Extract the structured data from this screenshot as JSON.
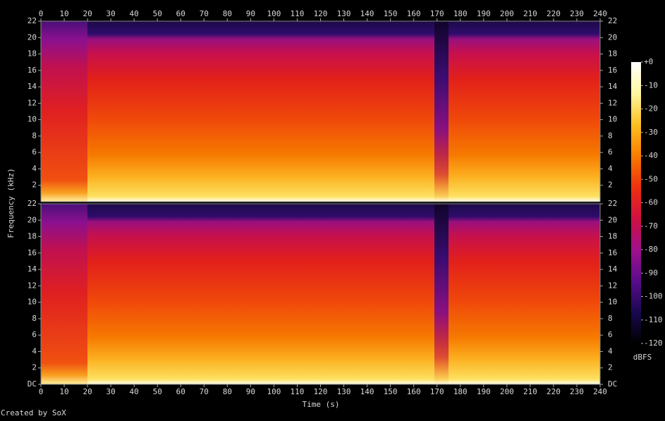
{
  "chart_data": {
    "type": "spectrogram",
    "xlabel": "Time (s)",
    "ylabel": "Frequency (kHz)",
    "xlim": [
      0,
      240
    ],
    "xticks": [
      0,
      10,
      20,
      30,
      40,
      50,
      60,
      70,
      80,
      90,
      100,
      110,
      120,
      130,
      140,
      150,
      160,
      170,
      180,
      190,
      200,
      210,
      220,
      230,
      240
    ],
    "channels": [
      {
        "ylim": [
          0,
          22
        ],
        "yticks": [
          2,
          4,
          6,
          8,
          10,
          12,
          14,
          16,
          18,
          20,
          22
        ]
      },
      {
        "ylim": [
          0,
          22
        ],
        "yticks": [
          {
            "value": 0,
            "label": "DC"
          },
          2,
          4,
          6,
          8,
          10,
          12,
          14,
          16,
          18,
          20,
          22
        ]
      }
    ],
    "colorbar": {
      "label": "dBFS",
      "lim": [
        -120,
        0
      ],
      "ticks": [
        {
          "value": 0,
          "label": "+0"
        },
        -10,
        -20,
        -30,
        -40,
        -50,
        -60,
        -70,
        -80,
        -90,
        -100,
        -110,
        -120
      ],
      "colors": [
        "#000000",
        "#1a0850",
        "#5a0c8c",
        "#a0108c",
        "#d01040",
        "#f03010",
        "#f87c00",
        "#fcc020",
        "#fff8a0",
        "#ffffff"
      ]
    },
    "credit": "Created by SoX"
  }
}
